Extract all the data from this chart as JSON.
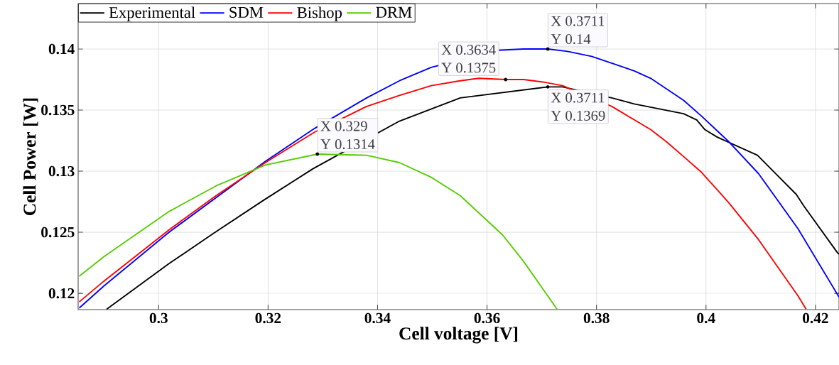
{
  "chart_data": {
    "type": "line",
    "xlabel": "Cell voltage [V]",
    "ylabel": "Cell Power [W]",
    "xlim": [
      0.2853,
      0.4243
    ],
    "ylim": [
      0.11867,
      0.14372
    ],
    "xticks": [
      0.3,
      0.32,
      0.34,
      0.36,
      0.38,
      0.4,
      0.42
    ],
    "yticks": [
      0.12,
      0.125,
      0.13,
      0.135,
      0.14
    ],
    "grid": true,
    "legend": "top left",
    "line_style": "solid",
    "series": [
      {
        "name": "Experimental",
        "color": "#000000",
        "x": [
          0.2905,
          0.3018,
          0.31,
          0.3191,
          0.3282,
          0.344,
          0.3551,
          0.3711,
          0.3738,
          0.3828,
          0.3869,
          0.3959,
          0.3983,
          0.3998,
          0.402,
          0.4094,
          0.4165,
          0.4178,
          0.4239,
          0.4243
        ],
        "values": [
          0.1187,
          0.1224,
          0.1249,
          0.1276,
          0.1302,
          0.1341,
          0.136,
          0.1369,
          0.1369,
          0.136,
          0.1355,
          0.1347,
          0.1342,
          0.1334,
          0.1328,
          0.1313,
          0.1281,
          0.1272,
          0.1234,
          0.1232
        ]
      },
      {
        "name": "SDM",
        "color": "#0000ff",
        "x": [
          0.2855,
          0.29,
          0.3019,
          0.3195,
          0.3285,
          0.338,
          0.344,
          0.3498,
          0.3621,
          0.3667,
          0.3711,
          0.3747,
          0.3791,
          0.3837,
          0.3869,
          0.3899,
          0.3959,
          0.3992,
          0.4042,
          0.4096,
          0.4168,
          0.4243
        ],
        "values": [
          0.1188,
          0.1206,
          0.125,
          0.1308,
          0.1335,
          0.136,
          0.1374,
          0.1385,
          0.1399,
          0.14,
          0.14,
          0.1398,
          0.1394,
          0.1387,
          0.1382,
          0.1376,
          0.1358,
          0.1345,
          0.1324,
          0.1298,
          0.1253,
          0.1197
        ]
      },
      {
        "name": "Bishop",
        "color": "#ff0000",
        "x": [
          0.2855,
          0.29,
          0.3019,
          0.3105,
          0.3195,
          0.3285,
          0.338,
          0.344,
          0.3498,
          0.3551,
          0.3585,
          0.3634,
          0.3667,
          0.3702,
          0.3738,
          0.3828,
          0.3869,
          0.3899,
          0.3928,
          0.3959,
          0.3992,
          0.4042,
          0.4096,
          0.4168,
          0.4183
        ],
        "values": [
          0.1193,
          0.121,
          0.1252,
          0.128,
          0.1307,
          0.1332,
          0.1353,
          0.1362,
          0.137,
          0.1374,
          0.1376,
          0.1375,
          0.1375,
          0.1373,
          0.137,
          0.1353,
          0.1342,
          0.1334,
          0.1324,
          0.1312,
          0.1299,
          0.1274,
          0.1244,
          0.1198,
          0.1187
        ]
      },
      {
        "name": "DRM",
        "color": "#55cc00",
        "x": [
          0.2855,
          0.29,
          0.3019,
          0.3105,
          0.3195,
          0.329,
          0.338,
          0.344,
          0.3498,
          0.3551,
          0.3628,
          0.3667,
          0.3728
        ],
        "values": [
          0.1214,
          0.123,
          0.1267,
          0.1288,
          0.1305,
          0.1314,
          0.1313,
          0.1307,
          0.1295,
          0.128,
          0.1248,
          0.1226,
          0.1187
        ]
      }
    ],
    "annotations": [
      {
        "text": "X 0.329",
        "x": 0.329,
        "y": 0.1314
      },
      {
        "text": "Y 0.1314",
        "x": 0.329,
        "y": 0.1314
      },
      {
        "text": "X 0.3634",
        "x": 0.3634,
        "y": 0.1375
      },
      {
        "text": "Y 0.1375",
        "x": 0.3634,
        "y": 0.1375
      },
      {
        "text": "X 0.3711",
        "x": 0.3711,
        "y": 0.14
      },
      {
        "text": "Y 0.14",
        "x": 0.3711,
        "y": 0.14
      },
      {
        "text": "X 0.3711",
        "x": 0.3711,
        "y": 0.1369
      },
      {
        "text": "Y 0.1369",
        "x": 0.3711,
        "y": 0.1369
      }
    ]
  }
}
